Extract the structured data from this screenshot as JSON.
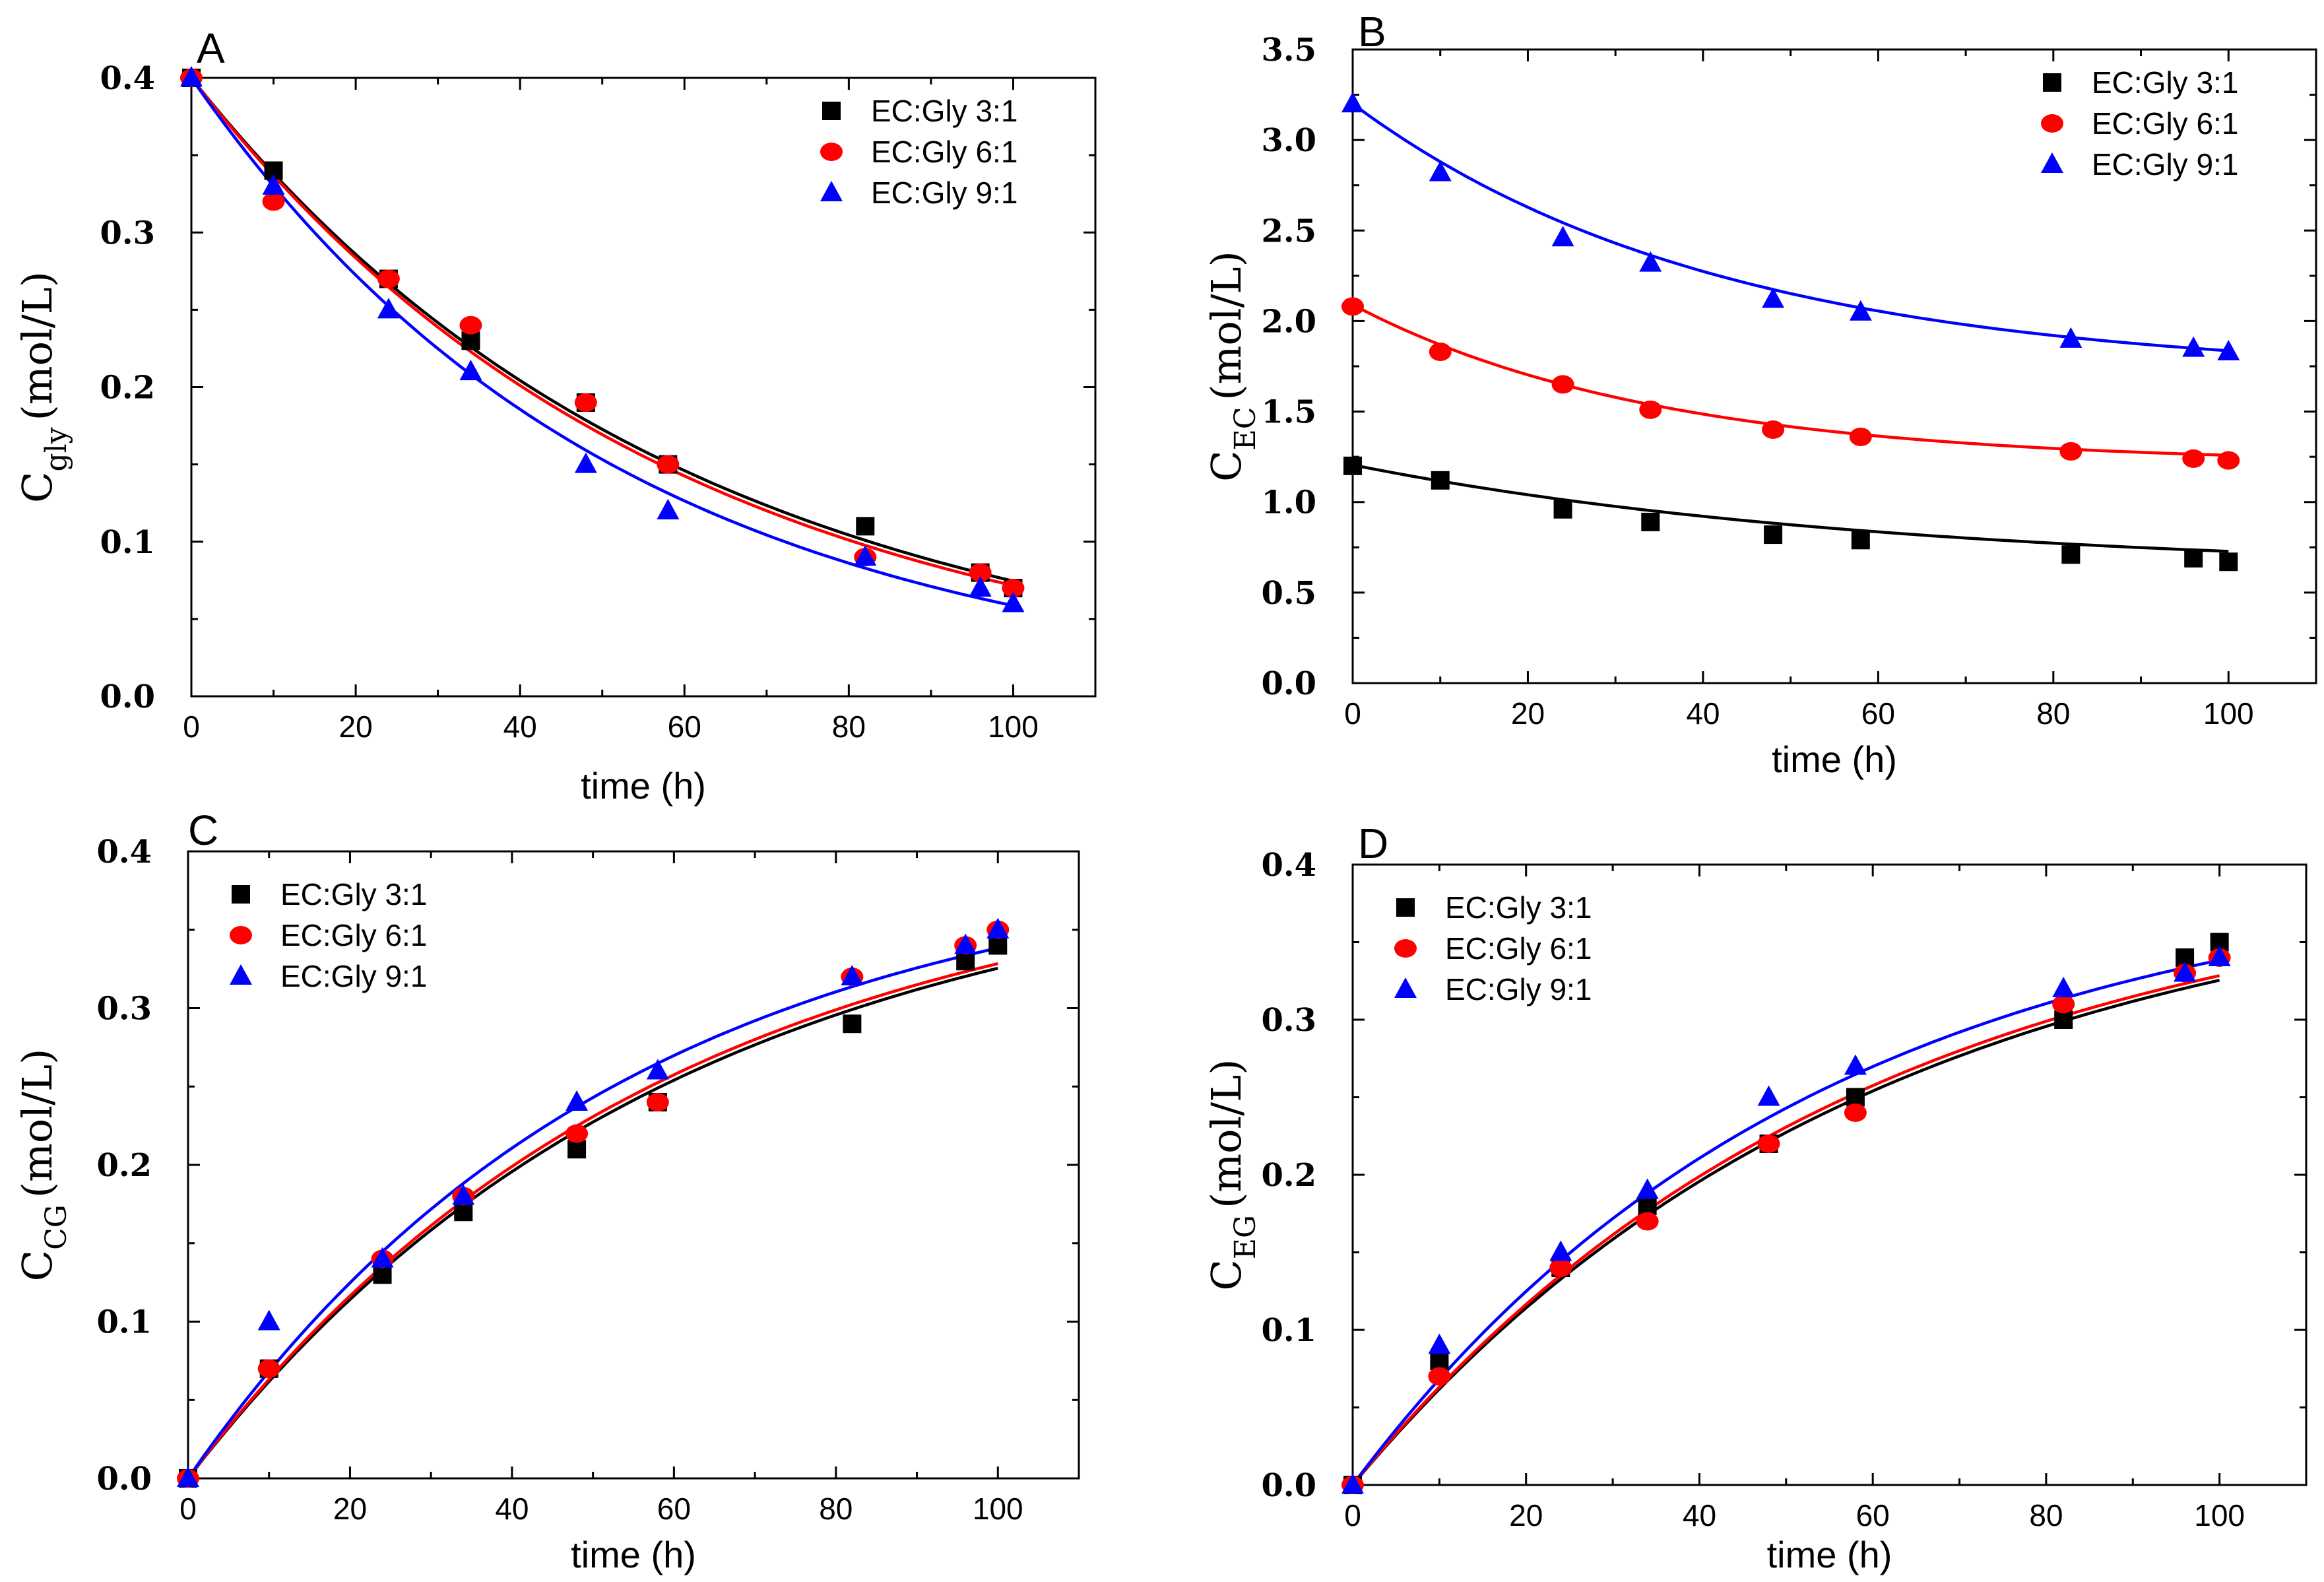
{
  "chart_data": [
    {
      "type": "scatter",
      "panel": "A",
      "xlabel": "time (h)",
      "ylabel": {
        "main": "C",
        "sub": "gly",
        "unit": "(mol/L)"
      },
      "xlim": [
        0,
        110
      ],
      "ylim": [
        0,
        0.4
      ],
      "xticks": [
        "0",
        "20",
        "40",
        "60",
        "80",
        "100"
      ],
      "yticks": [
        "0.0",
        "0.1",
        "0.2",
        "0.3",
        "0.4"
      ],
      "legend_position": "top-right",
      "x": [
        0,
        10,
        24,
        34,
        48,
        58,
        82,
        96,
        100
      ],
      "series": [
        {
          "name": "EC:Gly 3:1",
          "color": "#000000",
          "marker": "square",
          "values": [
            0.4,
            0.34,
            0.27,
            0.23,
            0.19,
            0.15,
            0.11,
            0.08,
            0.07
          ],
          "fit": {
            "a": 0.4,
            "k": 0.0168,
            "c": 0
          }
        },
        {
          "name": "EC:Gly 6:1",
          "color": "#ff0000",
          "marker": "circle",
          "values": [
            0.4,
            0.32,
            0.27,
            0.24,
            0.19,
            0.15,
            0.09,
            0.08,
            0.07
          ],
          "fit": {
            "a": 0.4,
            "k": 0.0172,
            "c": 0
          }
        },
        {
          "name": "EC:Gly 9:1",
          "color": "#0000ff",
          "marker": "triangle",
          "values": [
            0.4,
            0.33,
            0.25,
            0.21,
            0.15,
            0.12,
            0.09,
            0.07,
            0.06
          ],
          "fit": {
            "a": 0.4,
            "k": 0.0192,
            "c": 0
          }
        }
      ]
    },
    {
      "type": "scatter",
      "panel": "B",
      "xlabel": "time (h)",
      "ylabel": {
        "main": "C",
        "sub": "EC",
        "unit": "(mol/L)"
      },
      "xlim": [
        0,
        110
      ],
      "ylim": [
        0,
        3.5
      ],
      "xticks": [
        "0",
        "20",
        "40",
        "60",
        "80",
        "100"
      ],
      "yticks": [
        "0.0",
        "0.5",
        "1.0",
        "1.5",
        "2.0",
        "2.5",
        "3.0",
        "3.5"
      ],
      "legend_position": "top-right",
      "x": [
        0,
        10,
        24,
        34,
        48,
        58,
        82,
        96,
        100
      ],
      "series": [
        {
          "name": "EC:Gly 3:1",
          "color": "#000000",
          "marker": "square",
          "values": [
            1.2,
            1.12,
            0.96,
            0.89,
            0.82,
            0.79,
            0.71,
            0.69,
            0.67
          ],
          "fit": {
            "a": 0.595,
            "k": 0.0162,
            "c": 0.61
          }
        },
        {
          "name": "EC:Gly 6:1",
          "color": "#ff0000",
          "marker": "circle",
          "values": [
            2.08,
            1.83,
            1.65,
            1.51,
            1.4,
            1.36,
            1.28,
            1.24,
            1.23
          ],
          "fit": {
            "a": 0.88,
            "k": 0.029,
            "c": 1.21
          }
        },
        {
          "name": "EC:Gly 9:1",
          "color": "#0000ff",
          "marker": "triangle",
          "values": [
            3.2,
            2.82,
            2.46,
            2.32,
            2.12,
            2.05,
            1.9,
            1.85,
            1.83
          ],
          "fit": {
            "a": 1.5,
            "k": 0.024,
            "c": 1.7
          }
        }
      ]
    },
    {
      "type": "scatter",
      "panel": "C",
      "xlabel": "time (h)",
      "ylabel": {
        "main": "C",
        "sub": "CG",
        "unit": "(mol/L)"
      },
      "xlim": [
        0,
        110
      ],
      "ylim": [
        0,
        0.4
      ],
      "xticks": [
        "0",
        "20",
        "40",
        "60",
        "80",
        "100"
      ],
      "yticks": [
        "0.0",
        "0.1",
        "0.2",
        "0.3",
        "0.4"
      ],
      "legend_position": "top-left",
      "x": [
        0,
        10,
        24,
        34,
        48,
        58,
        82,
        96,
        100
      ],
      "series": [
        {
          "name": "EC:Gly 3:1",
          "color": "#000000",
          "marker": "square",
          "values": [
            0.0,
            0.07,
            0.13,
            0.17,
            0.21,
            0.24,
            0.29,
            0.33,
            0.34
          ],
          "fit": {
            "a": -0.4,
            "k": 0.0168,
            "c": 0.4
          }
        },
        {
          "name": "EC:Gly 6:1",
          "color": "#ff0000",
          "marker": "circle",
          "values": [
            0.0,
            0.07,
            0.14,
            0.18,
            0.22,
            0.24,
            0.32,
            0.34,
            0.35
          ],
          "fit": {
            "a": -0.4,
            "k": 0.0172,
            "c": 0.4
          }
        },
        {
          "name": "EC:Gly 9:1",
          "color": "#0000ff",
          "marker": "triangle",
          "values": [
            0.0,
            0.1,
            0.14,
            0.18,
            0.24,
            0.26,
            0.32,
            0.34,
            0.35
          ],
          "fit": {
            "a": -0.4,
            "k": 0.0187,
            "c": 0.4
          }
        }
      ]
    },
    {
      "type": "scatter",
      "panel": "D",
      "xlabel": "time (h)",
      "ylabel": {
        "main": "C",
        "sub": "EG",
        "unit": "(mol/L)"
      },
      "xlim": [
        0,
        110
      ],
      "ylim": [
        0,
        0.4
      ],
      "xticks": [
        "0",
        "20",
        "40",
        "60",
        "80",
        "100"
      ],
      "yticks": [
        "0.0",
        "0.1",
        "0.2",
        "0.3",
        "0.4"
      ],
      "legend_position": "top-left",
      "x": [
        0,
        10,
        24,
        34,
        48,
        58,
        82,
        96,
        100
      ],
      "series": [
        {
          "name": "EC:Gly 3:1",
          "color": "#000000",
          "marker": "square",
          "values": [
            0.0,
            0.08,
            0.14,
            0.18,
            0.22,
            0.25,
            0.3,
            0.34,
            0.35
          ],
          "fit": {
            "a": -0.4,
            "k": 0.0168,
            "c": 0.4
          }
        },
        {
          "name": "EC:Gly 6:1",
          "color": "#ff0000",
          "marker": "circle",
          "values": [
            0.0,
            0.07,
            0.14,
            0.17,
            0.22,
            0.24,
            0.31,
            0.33,
            0.34
          ],
          "fit": {
            "a": -0.4,
            "k": 0.0172,
            "c": 0.4
          }
        },
        {
          "name": "EC:Gly 9:1",
          "color": "#0000ff",
          "marker": "triangle",
          "values": [
            0.0,
            0.09,
            0.15,
            0.19,
            0.25,
            0.27,
            0.32,
            0.33,
            0.34
          ],
          "fit": {
            "a": -0.4,
            "k": 0.0187,
            "c": 0.4
          }
        }
      ]
    }
  ]
}
